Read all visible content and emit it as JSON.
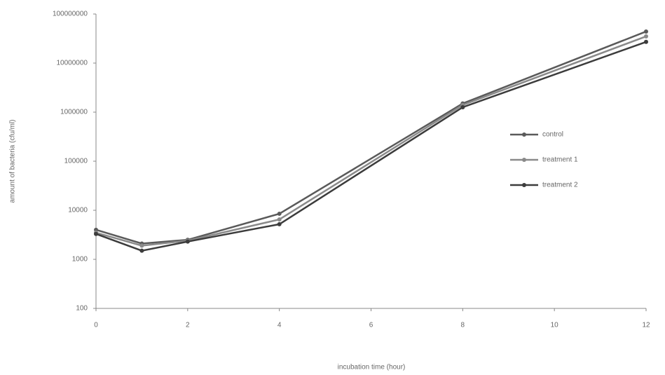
{
  "chart_data": {
    "type": "line",
    "x_label": "incubation time (hour)",
    "y_label": "amount of bacteria (cfu/ml)",
    "x": [
      0,
      1,
      2,
      4,
      8,
      12
    ],
    "xlim": [
      0,
      12
    ],
    "xticks": [
      0,
      2,
      4,
      6,
      8,
      10,
      12
    ],
    "ylim": [
      100,
      100000000
    ],
    "yticks": [
      100,
      1000,
      10000,
      100000,
      1000000,
      10000000,
      100000000
    ],
    "log_y": true,
    "grid": false,
    "legend": "right",
    "series": [
      {
        "name": "control",
        "color": "#5a5a5a",
        "values": [
          4000,
          2100,
          2500,
          8500,
          1500000,
          44000000
        ]
      },
      {
        "name": "treatment 1",
        "color": "#8a8a8a",
        "values": [
          3500,
          1900,
          2400,
          6500,
          1400000,
          35000000
        ]
      },
      {
        "name": "treatment 2",
        "color": "#3c3c3c",
        "values": [
          3300,
          1500,
          2300,
          5200,
          1260000,
          27000000
        ]
      }
    ]
  }
}
